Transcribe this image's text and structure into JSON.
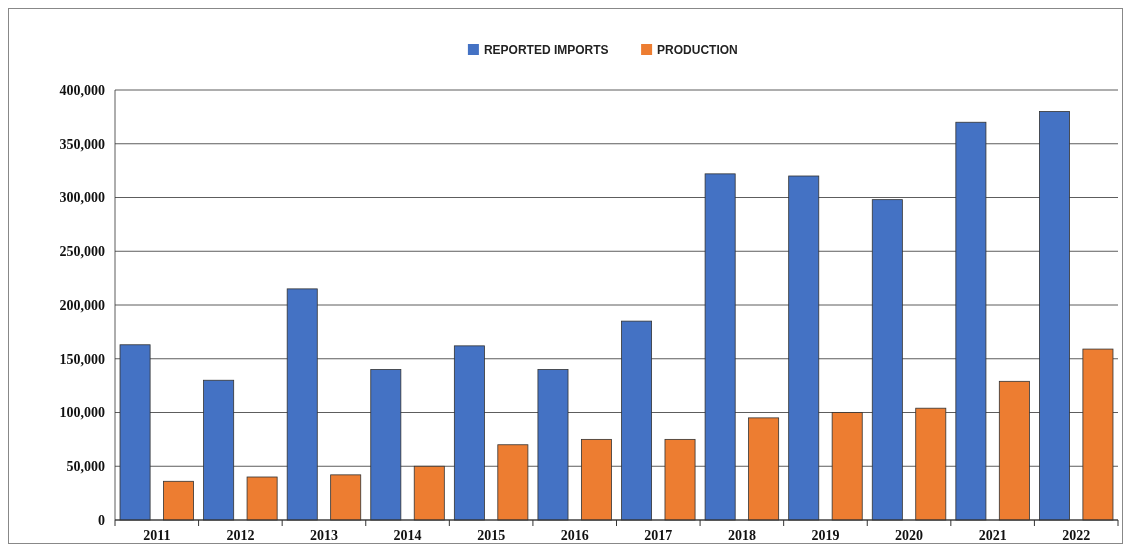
{
  "chart_data": {
    "type": "bar",
    "categories": [
      "2011",
      "2012",
      "2013",
      "2014",
      "2015",
      "2016",
      "2017",
      "2018",
      "2019",
      "2020",
      "2021",
      "2022"
    ],
    "series": [
      {
        "name": "REPORTED IMPORTS",
        "color": "#4472c4",
        "values": [
          163000,
          130000,
          215000,
          140000,
          162000,
          140000,
          185000,
          322000,
          320000,
          298000,
          370000,
          380000
        ]
      },
      {
        "name": "PRODUCTION",
        "color": "#ed7d31",
        "values": [
          36000,
          40000,
          42000,
          50000,
          70000,
          75000,
          75000,
          95000,
          100000,
          104000,
          129000,
          159000
        ]
      }
    ],
    "ylim": [
      0,
      400000
    ],
    "yticks": [
      {
        "value": 0,
        "label": "0"
      },
      {
        "value": 50000,
        "label": "50,000"
      },
      {
        "value": 100000,
        "label": "100,000"
      },
      {
        "value": 150000,
        "label": "150,000"
      },
      {
        "value": 200000,
        "label": "200,000"
      },
      {
        "value": 250000,
        "label": "250,000"
      },
      {
        "value": 300000,
        "label": "300,000"
      },
      {
        "value": 350000,
        "label": "350,000"
      },
      {
        "value": 400000,
        "label": "400,000"
      }
    ],
    "grid": "y",
    "legend": "top"
  }
}
